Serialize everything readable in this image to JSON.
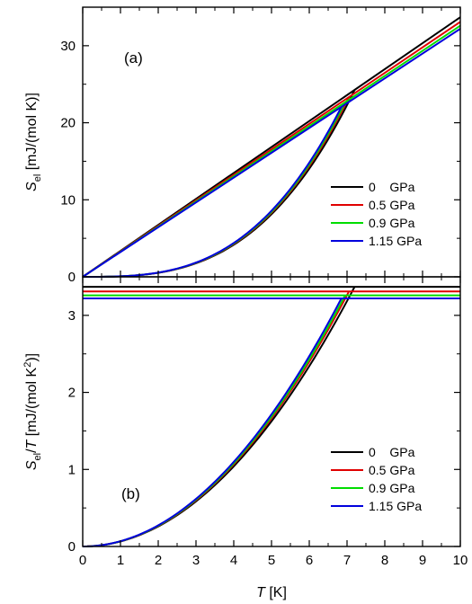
{
  "chart_data": [
    {
      "type": "line",
      "panel_label": "(a)",
      "ylabel_main": "S",
      "ylabel_sub": "el",
      "ylabel_rest": " [mJ/(mol K)]",
      "xlim": [
        0,
        10
      ],
      "ylim": [
        0,
        35
      ],
      "yticks": [
        0,
        10,
        20,
        30
      ],
      "xticks": [
        0,
        1,
        2,
        3,
        4,
        5,
        6,
        7,
        8,
        9,
        10
      ],
      "grid": false,
      "legend_position": "lower-right",
      "series": [
        {
          "name": "0    GPa",
          "color": "#000000",
          "gamma": 3.37,
          "Tc": 7.2
        },
        {
          "name": "0.5 GPa",
          "color": "#e00000",
          "gamma": 3.31,
          "Tc": 7.05
        },
        {
          "name": "0.9 GPa",
          "color": "#00dd00",
          "gamma": 3.26,
          "Tc": 6.95
        },
        {
          "name": "1.15 GPa",
          "color": "#0000dd",
          "gamma": 3.22,
          "Tc": 6.85
        }
      ],
      "superconducting_state": "S_el = gamma * T^3 / Tc^2 for T < Tc; normal state S_el = gamma * T"
    },
    {
      "type": "line",
      "panel_label": "(b)",
      "ylabel_main": "S",
      "ylabel_sub": "el",
      "ylabel_mid": "/",
      "ylabel_T": "T",
      "ylabel_rest": " [mJ/(mol K",
      "ylabel_sup": "2",
      "ylabel_end": ")]",
      "xlabel_main": "T",
      "xlabel_rest": " [K]",
      "xlim": [
        0,
        10
      ],
      "ylim": [
        0,
        3.5
      ],
      "yticks": [
        0,
        1,
        2,
        3
      ],
      "xticks": [
        0,
        1,
        2,
        3,
        4,
        5,
        6,
        7,
        8,
        9,
        10
      ],
      "grid": false,
      "legend_position": "lower-right",
      "series": [
        {
          "name": "0    GPa",
          "color": "#000000",
          "gamma": 3.37,
          "Tc": 7.2
        },
        {
          "name": "0.5 GPa",
          "color": "#e00000",
          "gamma": 3.31,
          "Tc": 7.05
        },
        {
          "name": "0.9 GPa",
          "color": "#00dd00",
          "gamma": 3.26,
          "Tc": 6.95
        },
        {
          "name": "1.15 GPa",
          "color": "#0000dd",
          "gamma": 3.22,
          "Tc": 6.85
        }
      ]
    }
  ]
}
